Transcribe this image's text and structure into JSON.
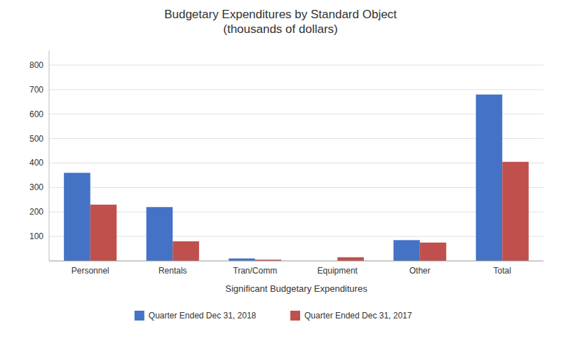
{
  "chart_data": {
    "type": "bar",
    "title": "Budgetary Expenditures by Standard Object\n(thousands of dollars)",
    "x_label": "Significant Budgetary Expenditures",
    "categories": [
      "Personnel",
      "Rentals",
      "Tran/Comm",
      "Equipment",
      "Other",
      "Total"
    ],
    "series": [
      {
        "name": "Quarter Ended Dec 31, 2018",
        "color": "#4472c4",
        "values": [
          360,
          220,
          10,
          0,
          85,
          680
        ]
      },
      {
        "name": "Quarter Ended Dec 31, 2017",
        "color": "#c0504d",
        "values": [
          230,
          80,
          5,
          15,
          75,
          405
        ]
      }
    ],
    "ylim": [
      0,
      860
    ],
    "yticks": [
      100,
      200,
      300,
      400,
      500,
      600,
      700,
      800
    ],
    "grid": true,
    "legend": "bottom"
  }
}
